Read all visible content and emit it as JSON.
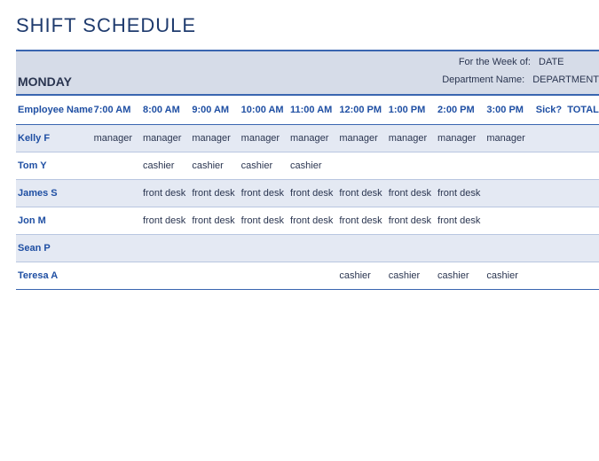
{
  "title": "SHIFT SCHEDULE",
  "day": "MONDAY",
  "meta": {
    "week_label": "For the Week of:",
    "week_value": "DATE",
    "dept_label": "Department Name:",
    "dept_value": "DEPARTMENT"
  },
  "colors": {
    "accent": "#1f4fa3",
    "border": "#3a66b0",
    "header_bg": "#d6dce8",
    "row_shade": "#e4e9f3",
    "row_border": "#b8c6e0",
    "text": "#2a3550",
    "background": "#ffffff"
  },
  "table": {
    "columns": [
      "Employee Name",
      "7:00 AM",
      "8:00 AM",
      "9:00 AM",
      "10:00 AM",
      "11:00 AM",
      "12:00 PM",
      "1:00 PM",
      "2:00 PM",
      "3:00 PM",
      "Sick?",
      "TOTAL"
    ],
    "rows": [
      {
        "name": "Kelly F",
        "shade": true,
        "cells": [
          "manager",
          "manager",
          "manager",
          "manager",
          "manager",
          "manager",
          "manager",
          "manager",
          "manager",
          "",
          ""
        ]
      },
      {
        "name": "Tom Y",
        "shade": false,
        "cells": [
          "",
          "cashier",
          "cashier",
          "cashier",
          "cashier",
          "",
          "",
          "",
          "",
          "",
          ""
        ]
      },
      {
        "name": "James S",
        "shade": true,
        "cells": [
          "",
          "front desk",
          "front desk",
          "front desk",
          "front desk",
          "front desk",
          "front desk",
          "front desk",
          "",
          "",
          ""
        ]
      },
      {
        "name": "Jon M",
        "shade": false,
        "cells": [
          "",
          "front desk",
          "front desk",
          "front desk",
          "front desk",
          "front desk",
          "front desk",
          "front desk",
          "",
          "",
          ""
        ]
      },
      {
        "name": "Sean P",
        "shade": true,
        "cells": [
          "",
          "",
          "",
          "",
          "",
          "",
          "",
          "",
          "",
          "",
          ""
        ]
      },
      {
        "name": "Teresa A",
        "shade": false,
        "cells": [
          "",
          "",
          "",
          "",
          "",
          "cashier",
          "cashier",
          "cashier",
          "cashier",
          "",
          ""
        ]
      }
    ]
  }
}
